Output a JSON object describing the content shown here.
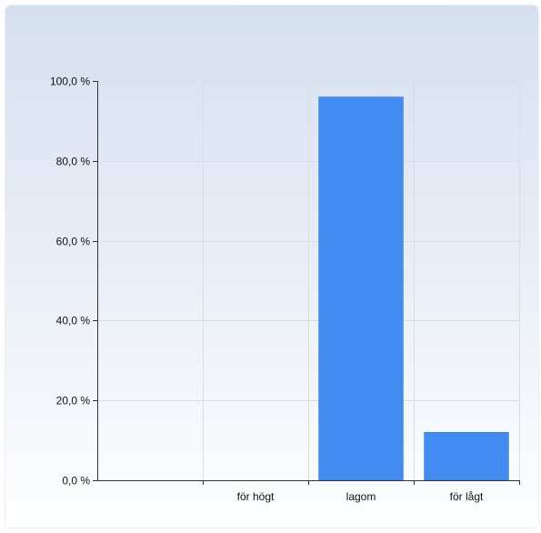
{
  "chart_data": {
    "type": "bar",
    "categories": [
      "",
      "för högt",
      "lagom",
      "för lågt"
    ],
    "values": [
      0,
      0,
      96.0,
      12.0
    ],
    "ylim": [
      0,
      100
    ],
    "yticks": [
      0,
      20,
      40,
      60,
      80,
      100
    ],
    "ytick_labels": [
      "0,0 %",
      "20,0 %",
      "40,0 %",
      "60,0 %",
      "80,0 %",
      "100,0 %"
    ],
    "grid": true,
    "title": "",
    "xlabel": "",
    "ylabel": "",
    "bar_color": "#428bf0"
  }
}
